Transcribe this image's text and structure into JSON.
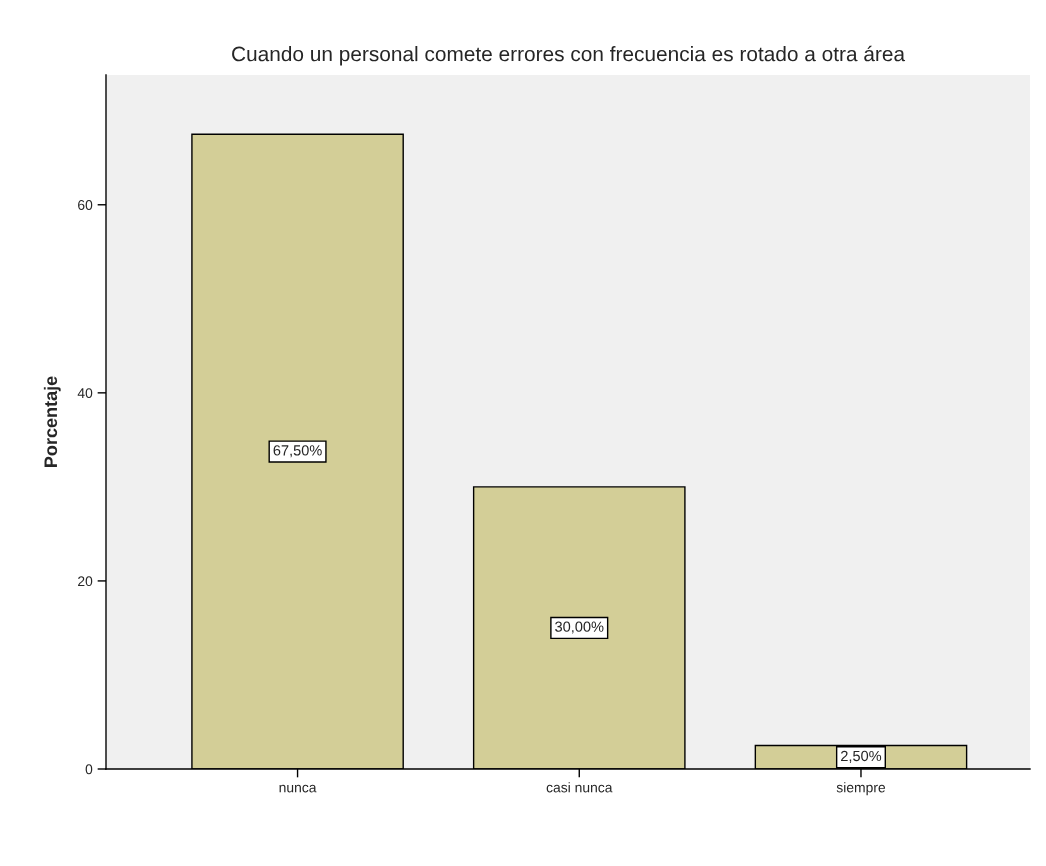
{
  "chart_data": {
    "type": "bar",
    "title": "Cuando un personal comete errores con frecuencia es rotado a otra área",
    "ylabel": "Porcentaje",
    "categories": [
      "nunca",
      "casi nunca",
      "siempre"
    ],
    "values": [
      67.5,
      30.0,
      2.5
    ],
    "value_labels": [
      "67,50%",
      "30,00%",
      "2,50%"
    ],
    "color": "#d3ce97",
    "ylim": [
      0,
      73.8
    ],
    "yticks": [
      0,
      20,
      40,
      60
    ],
    "grid": false,
    "legend": false
  }
}
